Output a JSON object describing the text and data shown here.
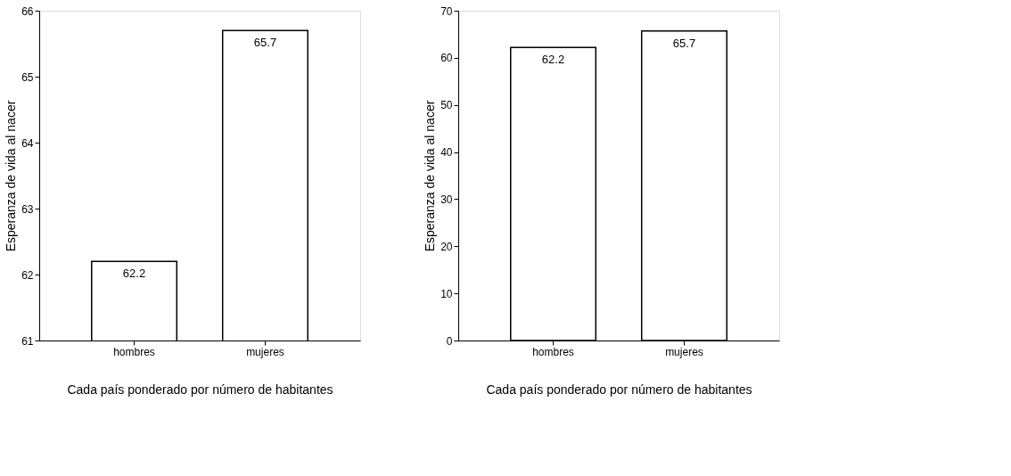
{
  "chart_data": [
    {
      "type": "bar",
      "categories": [
        "hombres",
        "mujeres"
      ],
      "values": [
        62.2,
        65.7
      ],
      "color": "#ffffff",
      "ylim": [
        61,
        66
      ],
      "yticks": [
        61,
        62,
        63,
        64,
        65,
        66
      ],
      "ylabel": "Esperanza de vida al nacer",
      "xlabel": "Cada país ponderado por número de habitantes",
      "data_labels": true,
      "grid": false
    },
    {
      "type": "bar",
      "categories": [
        "hombres",
        "mujeres"
      ],
      "values": [
        62.2,
        65.7
      ],
      "color": "#ffffff",
      "ylim": [
        0,
        70
      ],
      "yticks": [
        0,
        10,
        20,
        30,
        40,
        50,
        60,
        70
      ],
      "ylabel": "Esperanza de vida al nacer",
      "xlabel": "Cada país ponderado por número de habitantes",
      "data_labels": true,
      "grid": false
    }
  ]
}
